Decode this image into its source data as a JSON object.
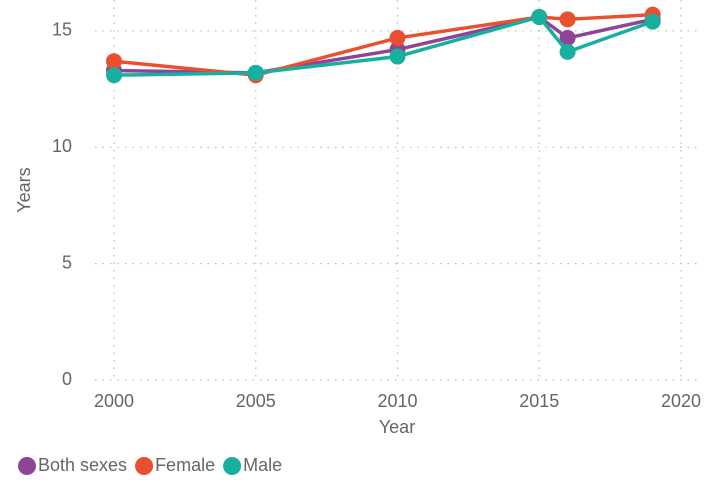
{
  "chart_data": {
    "type": "line",
    "x_label": "Year",
    "y_label": "Years",
    "x": [
      2000,
      2005,
      2010,
      2015,
      2016,
      2019
    ],
    "series": [
      {
        "name": "Both sexes",
        "color": "#8e4597",
        "values": [
          13.3,
          13.2,
          14.2,
          15.6,
          14.7,
          15.5
        ]
      },
      {
        "name": "Female",
        "color": "#e8502f",
        "values": [
          13.7,
          13.1,
          14.7,
          15.6,
          15.5,
          15.7
        ]
      },
      {
        "name": "Male",
        "color": "#17b0a0",
        "values": [
          13.1,
          13.2,
          13.9,
          15.6,
          14.1,
          15.4
        ]
      }
    ],
    "xlim": [
      1999.33,
      2020.67
    ],
    "xticks": [
      2000,
      2005,
      2010,
      2015,
      2020
    ],
    "ylim": [
      0,
      16.33
    ],
    "yticks": [
      0,
      5,
      10,
      15
    ],
    "grid": true,
    "legend": "bottom-left"
  }
}
